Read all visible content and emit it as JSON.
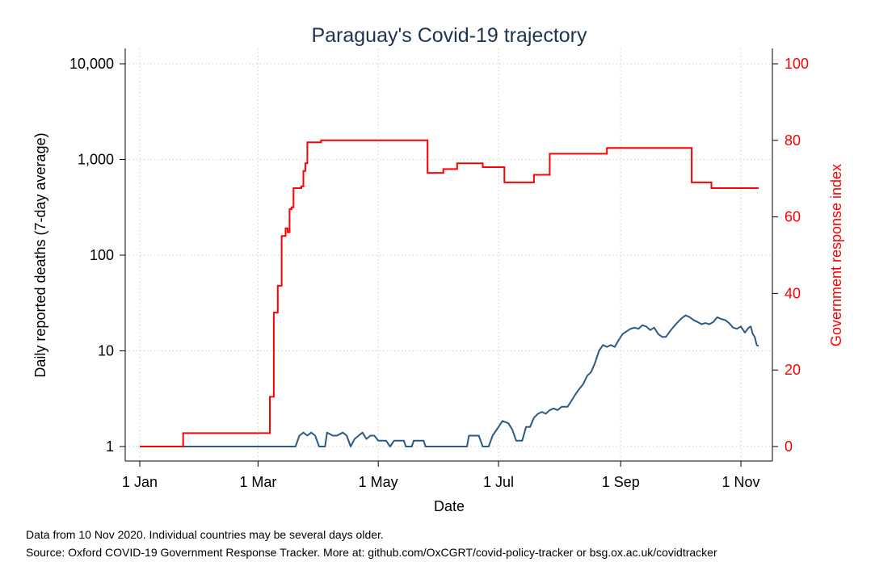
{
  "chart_data": {
    "type": "line",
    "title": "Paraguay's Covid-19 trajectory",
    "xlabel": "Date",
    "ylabel_left": "Daily reported deaths (7-day average)",
    "ylabel_right": "Government response index",
    "x_range": [
      "2020-01-01",
      "2020-11-10"
    ],
    "x_ticks": [
      {
        "date": "2020-01-01",
        "label": "1 Jan"
      },
      {
        "date": "2020-03-01",
        "label": "1 Mar"
      },
      {
        "date": "2020-05-01",
        "label": "1 May"
      },
      {
        "date": "2020-07-01",
        "label": "1 Jul"
      },
      {
        "date": "2020-09-01",
        "label": "1 Sep"
      },
      {
        "date": "2020-11-01",
        "label": "1 Nov"
      }
    ],
    "y_left": {
      "scale": "log",
      "ticks": [
        1,
        10,
        100,
        1000,
        10000
      ],
      "tick_labels": [
        "1",
        "10",
        "100",
        "1,000",
        "10,000"
      ]
    },
    "y_right": {
      "scale": "linear",
      "ylim": [
        0,
        100
      ],
      "ticks": [
        0,
        20,
        40,
        60,
        80,
        100
      ],
      "tick_labels": [
        "0",
        "20",
        "40",
        "60",
        "80",
        "100"
      ]
    },
    "grid": true,
    "colors": {
      "deaths": "#2c5a86",
      "response": "#ff0000",
      "title": "#1e3350",
      "grid": "#cfcfcf",
      "axis": "#000000"
    },
    "series": [
      {
        "axis": "left",
        "points": [
          [
            "2020-01-01",
            1
          ],
          [
            "2020-03-20",
            1
          ],
          [
            "2020-03-22",
            1.3
          ],
          [
            "2020-03-24",
            1.4
          ],
          [
            "2020-03-26",
            1.3
          ],
          [
            "2020-03-28",
            1.4
          ],
          [
            "2020-03-30",
            1.3
          ],
          [
            "2020-04-01",
            1.0
          ],
          [
            "2020-04-04",
            1.0
          ],
          [
            "2020-04-05",
            1.4
          ],
          [
            "2020-04-08",
            1.3
          ],
          [
            "2020-04-10",
            1.3
          ],
          [
            "2020-04-13",
            1.4
          ],
          [
            "2020-04-15",
            1.3
          ],
          [
            "2020-04-17",
            1.0
          ],
          [
            "2020-04-19",
            1.2
          ],
          [
            "2020-04-21",
            1.3
          ],
          [
            "2020-04-23",
            1.4
          ],
          [
            "2020-04-25",
            1.2
          ],
          [
            "2020-04-27",
            1.3
          ],
          [
            "2020-04-29",
            1.3
          ],
          [
            "2020-05-01",
            1.15
          ],
          [
            "2020-05-05",
            1.15
          ],
          [
            "2020-05-07",
            1.0
          ],
          [
            "2020-05-09",
            1.15
          ],
          [
            "2020-05-14",
            1.15
          ],
          [
            "2020-05-15",
            1.0
          ],
          [
            "2020-05-18",
            1.0
          ],
          [
            "2020-05-19",
            1.15
          ],
          [
            "2020-05-24",
            1.15
          ],
          [
            "2020-05-25",
            1.0
          ],
          [
            "2020-06-15",
            1.0
          ],
          [
            "2020-06-16",
            1.3
          ],
          [
            "2020-06-21",
            1.3
          ],
          [
            "2020-06-23",
            1.0
          ],
          [
            "2020-06-26",
            1.0
          ],
          [
            "2020-06-28",
            1.3
          ],
          [
            "2020-07-01",
            1.6
          ],
          [
            "2020-07-03",
            1.85
          ],
          [
            "2020-07-06",
            1.75
          ],
          [
            "2020-07-08",
            1.5
          ],
          [
            "2020-07-10",
            1.15
          ],
          [
            "2020-07-13",
            1.15
          ],
          [
            "2020-07-15",
            1.6
          ],
          [
            "2020-07-17",
            1.6
          ],
          [
            "2020-07-19",
            2.0
          ],
          [
            "2020-07-21",
            2.2
          ],
          [
            "2020-07-23",
            2.3
          ],
          [
            "2020-07-25",
            2.2
          ],
          [
            "2020-07-27",
            2.4
          ],
          [
            "2020-07-29",
            2.5
          ],
          [
            "2020-07-31",
            2.4
          ],
          [
            "2020-08-02",
            2.6
          ],
          [
            "2020-08-05",
            2.6
          ],
          [
            "2020-08-07",
            3.0
          ],
          [
            "2020-08-09",
            3.5
          ],
          [
            "2020-08-11",
            4.0
          ],
          [
            "2020-08-13",
            4.5
          ],
          [
            "2020-08-15",
            5.5
          ],
          [
            "2020-08-17",
            6.0
          ],
          [
            "2020-08-19",
            7.5
          ],
          [
            "2020-08-21",
            10.0
          ],
          [
            "2020-08-23",
            11.5
          ],
          [
            "2020-08-25",
            11.0
          ],
          [
            "2020-08-27",
            11.5
          ],
          [
            "2020-08-29",
            11.0
          ],
          [
            "2020-08-31",
            13.0
          ],
          [
            "2020-09-02",
            15.0
          ],
          [
            "2020-09-04",
            16.0
          ],
          [
            "2020-09-06",
            17.0
          ],
          [
            "2020-09-08",
            17.5
          ],
          [
            "2020-09-10",
            17.0
          ],
          [
            "2020-09-12",
            18.5
          ],
          [
            "2020-09-14",
            18.0
          ],
          [
            "2020-09-16",
            16.5
          ],
          [
            "2020-09-18",
            17.5
          ],
          [
            "2020-09-20",
            15.0
          ],
          [
            "2020-09-22",
            14.0
          ],
          [
            "2020-09-24",
            14.0
          ],
          [
            "2020-09-26",
            16.0
          ],
          [
            "2020-09-28",
            18.0
          ],
          [
            "2020-09-30",
            20.0
          ],
          [
            "2020-10-02",
            22.0
          ],
          [
            "2020-10-04",
            23.5
          ],
          [
            "2020-10-06",
            22.5
          ],
          [
            "2020-10-08",
            21.0
          ],
          [
            "2020-10-10",
            20.0
          ],
          [
            "2020-10-12",
            19.0
          ],
          [
            "2020-10-14",
            19.5
          ],
          [
            "2020-10-16",
            19.0
          ],
          [
            "2020-10-18",
            20.0
          ],
          [
            "2020-10-20",
            22.5
          ],
          [
            "2020-10-22",
            21.5
          ],
          [
            "2020-10-24",
            21.0
          ],
          [
            "2020-10-26",
            19.5
          ],
          [
            "2020-10-28",
            17.5
          ],
          [
            "2020-10-30",
            17.0
          ],
          [
            "2020-11-01",
            18.0
          ],
          [
            "2020-11-03",
            15.5
          ],
          [
            "2020-11-05",
            17.5
          ],
          [
            "2020-11-06",
            18.0
          ],
          [
            "2020-11-07",
            15.0
          ],
          [
            "2020-11-08",
            14.0
          ],
          [
            "2020-11-09",
            11.5
          ],
          [
            "2020-11-10",
            11.2
          ]
        ]
      },
      {
        "axis": "right",
        "step": true,
        "points": [
          [
            "2020-01-01",
            0
          ],
          [
            "2020-01-23",
            3.5
          ],
          [
            "2020-03-07",
            13
          ],
          [
            "2020-03-09",
            35
          ],
          [
            "2020-03-11",
            42
          ],
          [
            "2020-03-13",
            55
          ],
          [
            "2020-03-15",
            57
          ],
          [
            "2020-03-16",
            56
          ],
          [
            "2020-03-17",
            62
          ],
          [
            "2020-03-18",
            62.5
          ],
          [
            "2020-03-19",
            67.5
          ],
          [
            "2020-03-23",
            68
          ],
          [
            "2020-03-24",
            72
          ],
          [
            "2020-03-25",
            74
          ],
          [
            "2020-03-26",
            79.5
          ],
          [
            "2020-04-02",
            80
          ],
          [
            "2020-05-26",
            71.5
          ],
          [
            "2020-06-03",
            72.5
          ],
          [
            "2020-06-10",
            74
          ],
          [
            "2020-06-23",
            73
          ],
          [
            "2020-07-04",
            69
          ],
          [
            "2020-07-19",
            71
          ],
          [
            "2020-07-27",
            76.5
          ],
          [
            "2020-08-25",
            78
          ],
          [
            "2020-10-07",
            69
          ],
          [
            "2020-10-17",
            67.5
          ],
          [
            "2020-11-10",
            67.5
          ]
        ]
      }
    ]
  },
  "notes": {
    "line1": "Data from 10 Nov 2020. Individual countries may be several days older.",
    "line2": "Source: Oxford COVID-19 Government Response Tracker. More at: github.com/OxCGRT/covid-policy-tracker or bsg.ox.ac.uk/covidtracker"
  }
}
